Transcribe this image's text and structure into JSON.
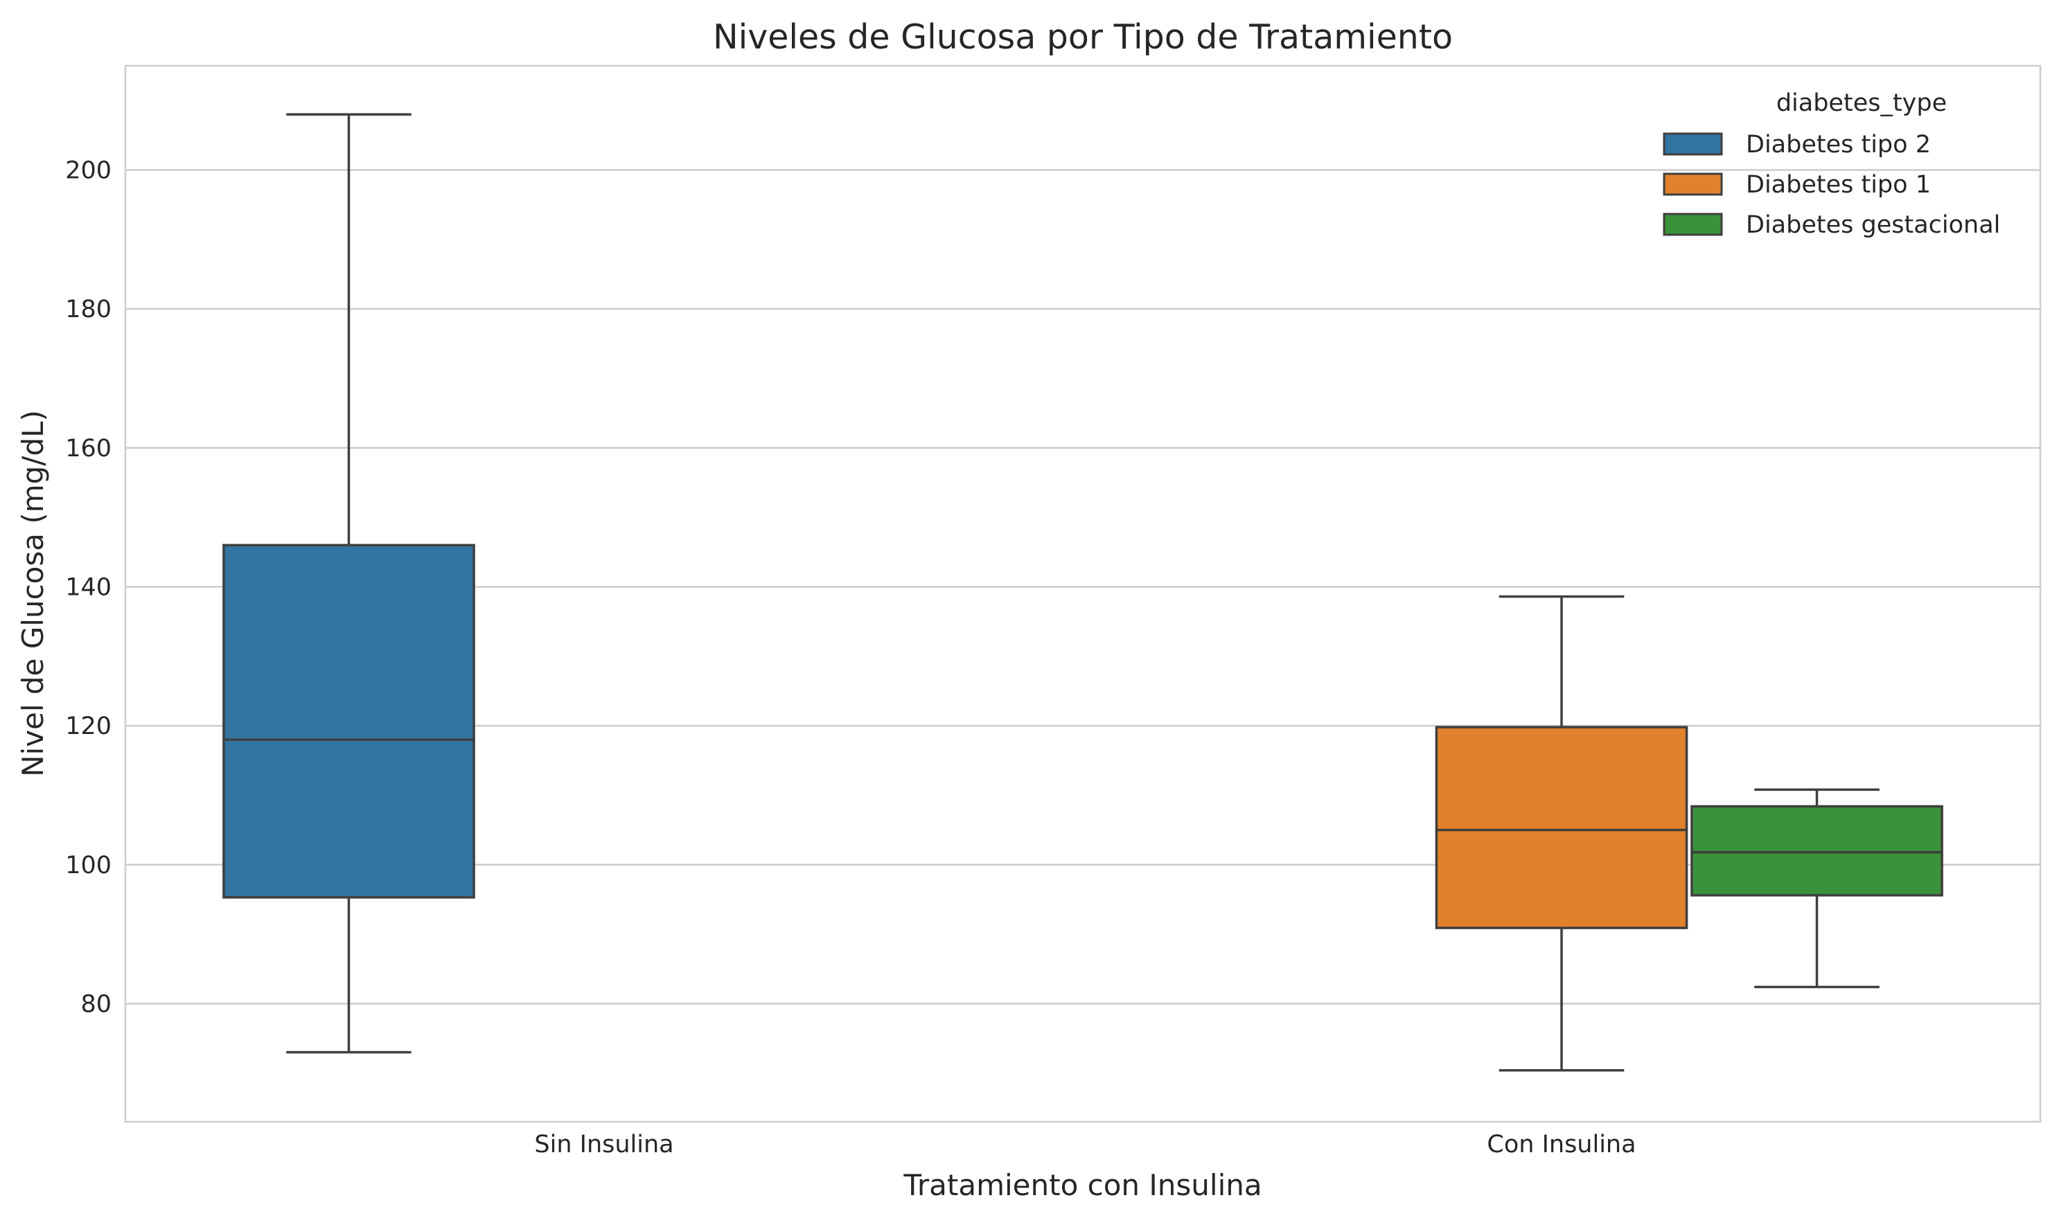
{
  "chart_data": {
    "type": "boxplot",
    "title": "Niveles de Glucosa por Tipo de Tratamiento",
    "xlabel": "Tratamiento con Insulina",
    "ylabel": "Nivel de Glucosa (mg/dL)",
    "categories": [
      "Sin Insulina",
      "Con Insulina"
    ],
    "ylim": [
      63,
      215
    ],
    "yticks": [
      80,
      100,
      120,
      140,
      160,
      180,
      200
    ],
    "grid": true,
    "legend": {
      "title": "diabetes_type",
      "placement": "top-right",
      "entries": [
        "Diabetes tipo 2",
        "Diabetes tipo 1",
        "Diabetes gestacional"
      ]
    },
    "series": [
      {
        "name": "Diabetes tipo 2",
        "color": "#3274a1",
        "boxes": [
          {
            "category": "Sin Insulina",
            "whisker_low": 73,
            "q1": 95.3,
            "median": 118,
            "q3": 146,
            "whisker_high": 208
          }
        ]
      },
      {
        "name": "Diabetes tipo 1",
        "color": "#e1812c",
        "boxes": [
          {
            "category": "Con Insulina",
            "whisker_low": 70.4,
            "q1": 90.9,
            "median": 105,
            "q3": 119.8,
            "whisker_high": 138.6
          }
        ]
      },
      {
        "name": "Diabetes gestacional",
        "color": "#3a923a",
        "boxes": [
          {
            "category": "Con Insulina",
            "whisker_low": 82.4,
            "q1": 95.6,
            "median": 101.8,
            "q3": 108.4,
            "whisker_high": 110.8
          }
        ]
      }
    ]
  }
}
